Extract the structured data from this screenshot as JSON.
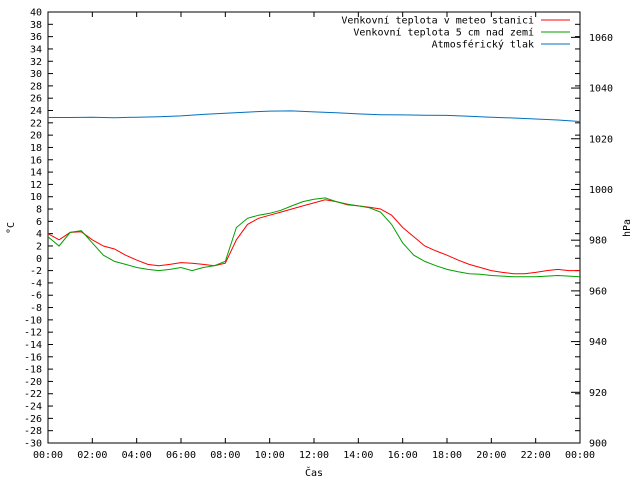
{
  "chart_data": {
    "type": "line",
    "xlabel": "Čas",
    "ylabel_left": "°C",
    "ylabel_right": "hPa",
    "x_ticks": [
      "00:00",
      "02:00",
      "04:00",
      "06:00",
      "08:00",
      "10:00",
      "12:00",
      "14:00",
      "16:00",
      "18:00",
      "20:00",
      "22:00",
      "00:00"
    ],
    "x_range_hours": [
      0,
      24
    ],
    "ylim_left": [
      -30,
      40
    ],
    "left_tick_step": 2,
    "ylim_right": [
      900,
      1070
    ],
    "right_ticks": [
      900,
      920,
      940,
      960,
      980,
      1000,
      1020,
      1040,
      1060
    ],
    "grid": false,
    "legend_position": "top-right",
    "series": [
      {
        "name": "Venkovní teplota v meteo stanici",
        "color": "#ff0000",
        "axis": "left",
        "x": [
          0,
          0.5,
          1,
          1.5,
          2,
          2.5,
          3,
          3.5,
          4,
          4.5,
          5,
          5.5,
          6,
          6.5,
          7,
          7.5,
          8,
          8.5,
          9,
          9.5,
          10,
          10.5,
          11,
          11.5,
          12,
          12.5,
          13,
          13.5,
          14,
          14.5,
          15,
          15.5,
          16,
          16.5,
          17,
          17.5,
          18,
          18.5,
          19,
          19.5,
          20,
          20.5,
          21,
          21.5,
          22,
          22.5,
          23,
          23.5,
          24
        ],
        "values": [
          4,
          3,
          4.2,
          4.3,
          3,
          2,
          1.5,
          0.5,
          -0.3,
          -1,
          -1.2,
          -1,
          -0.7,
          -0.8,
          -1,
          -1.2,
          -0.8,
          3,
          5.5,
          6.5,
          7,
          7.5,
          8,
          8.5,
          9,
          9.5,
          9.2,
          8.7,
          8.5,
          8.3,
          8,
          7,
          5,
          3.5,
          2,
          1.2,
          0.5,
          -0.3,
          -1,
          -1.5,
          -2,
          -2.3,
          -2.5,
          -2.5,
          -2.3,
          -2,
          -1.8,
          -2,
          -2
        ]
      },
      {
        "name": "Venkovní teplota 5 cm nad zemí",
        "color": "#00a000",
        "axis": "left",
        "x": [
          0,
          0.5,
          1,
          1.5,
          2,
          2.5,
          3,
          3.5,
          4,
          4.5,
          5,
          5.5,
          6,
          6.5,
          7,
          7.5,
          8,
          8.5,
          9,
          9.5,
          10,
          10.5,
          11,
          11.5,
          12,
          12.5,
          13,
          13.5,
          14,
          14.5,
          15,
          15.5,
          16,
          16.5,
          17,
          17.5,
          18,
          18.5,
          19,
          19.5,
          20,
          20.5,
          21,
          21.5,
          22,
          22.5,
          23,
          23.5,
          24
        ],
        "values": [
          3.5,
          2,
          4.2,
          4.5,
          2.5,
          0.5,
          -0.5,
          -1,
          -1.5,
          -1.8,
          -2,
          -1.8,
          -1.5,
          -2,
          -1.5,
          -1.2,
          -0.5,
          5,
          6.5,
          7,
          7.3,
          7.8,
          8.5,
          9.2,
          9.6,
          9.8,
          9.2,
          8.8,
          8.5,
          8.2,
          7.5,
          5.5,
          2.5,
          0.5,
          -0.5,
          -1.2,
          -1.8,
          -2.2,
          -2.5,
          -2.6,
          -2.8,
          -2.9,
          -3,
          -3,
          -3,
          -2.9,
          -2.8,
          -2.9,
          -3
        ]
      },
      {
        "name": "Atmosférický tlak",
        "color": "#0070c0",
        "axis": "right",
        "x": [
          0,
          1,
          2,
          3,
          4,
          5,
          6,
          7,
          8,
          9,
          10,
          11,
          12,
          13,
          14,
          15,
          16,
          17,
          18,
          19,
          20,
          21,
          22,
          23,
          24
        ],
        "values": [
          1028.4,
          1028.4,
          1028.5,
          1028.3,
          1028.5,
          1028.7,
          1029.0,
          1029.6,
          1030.1,
          1030.5,
          1030.9,
          1031.0,
          1030.6,
          1030.3,
          1029.8,
          1029.5,
          1029.4,
          1029.3,
          1029.2,
          1028.9,
          1028.5,
          1028.2,
          1027.8,
          1027.4,
          1026.8
        ]
      }
    ]
  }
}
